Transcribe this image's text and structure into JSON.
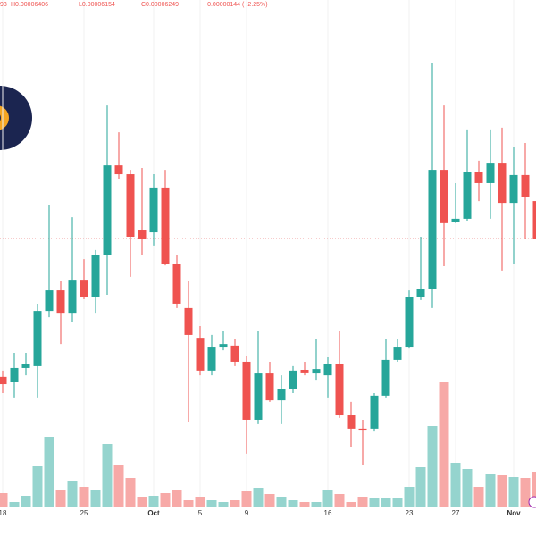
{
  "chart_data": {
    "type": "candlestick",
    "header": [
      "93",
      "H0.00006406",
      "L0.00006154",
      "C0.00006249",
      "−0.00000144 (−2.25%)"
    ],
    "categories": [
      "18",
      null,
      null,
      null,
      null,
      null,
      null,
      "25",
      null,
      null,
      null,
      null,
      null,
      "Oct",
      null,
      null,
      null,
      "5",
      null,
      null,
      null,
      "9",
      null,
      null,
      null,
      null,
      null,
      null,
      "16",
      null,
      null,
      null,
      null,
      null,
      null,
      "23",
      null,
      null,
      null,
      "27",
      null,
      null,
      null,
      null,
      "Nov",
      null,
      null
    ],
    "open": [
      5.718e-05,
      5.697e-05,
      5.752e-05,
      5.759e-05,
      5.971e-05,
      6.05e-05,
      5.964e-05,
      6.091e-05,
      6.023e-05,
      6.187e-05,
      6.53e-05,
      6.496e-05,
      6.28e-05,
      6.273e-05,
      6.445e-05,
      6.153e-05,
      5.982e-05,
      5.868e-05,
      5.742e-05,
      5.834e-05,
      5.838e-05,
      5.776e-05,
      5.553e-05,
      5.731e-05,
      5.628e-05,
      5.67e-05,
      5.745e-05,
      5.731e-05,
      5.724e-05,
      5.769e-05,
      5.57e-05,
      5.519e-05,
      5.519e-05,
      5.646e-05,
      5.783e-05,
      5.834e-05,
      6.023e-05,
      6.057e-05,
      6.513e-05,
      6.314e-05,
      6.325e-05,
      6.506e-05,
      6.462e-05,
      6.537e-05,
      6.386e-05,
      6.493e-05,
      6.393e-05
    ],
    "high": [
      5.742e-05,
      5.81e-05,
      5.81e-05,
      5.999e-05,
      6.376e-05,
      6.085e-05,
      6.331e-05,
      6.17e-05,
      6.205e-05,
      6.76e-05,
      6.657e-05,
      6.513e-05,
      6.52e-05,
      6.496e-05,
      6.513e-05,
      6.187e-05,
      6.085e-05,
      5.913e-05,
      5.879e-05,
      5.896e-05,
      5.862e-05,
      5.8e-05,
      5.896e-05,
      5.776e-05,
      5.724e-05,
      5.759e-05,
      5.776e-05,
      5.862e-05,
      5.793e-05,
      5.896e-05,
      5.622e-05,
      5.553e-05,
      5.656e-05,
      5.862e-05,
      5.862e-05,
      6.05e-05,
      6.256e-05,
      6.925e-05,
      6.76e-05,
      6.462e-05,
      6.668e-05,
      6.548e-05,
      6.668e-05,
      6.675e-05,
      6.599e-05,
      6.616e-05,
      6.406e-05
    ],
    "low": [
      5.656e-05,
      5.639e-05,
      5.724e-05,
      5.639e-05,
      5.947e-05,
      5.844e-05,
      5.93e-05,
      6.016e-05,
      5.964e-05,
      6.033e-05,
      6.479e-05,
      6.102e-05,
      6.187e-05,
      6.222e-05,
      6.146e-05,
      5.982e-05,
      5.546e-05,
      5.724e-05,
      5.724e-05,
      5.82e-05,
      5.759e-05,
      5.423e-05,
      5.536e-05,
      5.622e-05,
      5.536e-05,
      5.656e-05,
      5.724e-05,
      5.707e-05,
      5.639e-05,
      5.56e-05,
      5.45e-05,
      5.381e-05,
      5.508e-05,
      5.639e-05,
      5.776e-05,
      5.827e-05,
      6.013e-05,
      5.982e-05,
      6.143e-05,
      6.308e-05,
      6.318e-05,
      6.393e-05,
      6.325e-05,
      6.126e-05,
      6.153e-05,
      6.246e-05,
      6.154e-05
    ],
    "close": [
      5.69e-05,
      5.752e-05,
      5.766e-05,
      5.971e-05,
      6.05e-05,
      5.964e-05,
      6.091e-05,
      6.023e-05,
      6.187e-05,
      6.53e-05,
      6.496e-05,
      6.256e-05,
      6.246e-05,
      6.445e-05,
      6.153e-05,
      5.999e-05,
      5.879e-05,
      5.742e-05,
      5.834e-05,
      5.844e-05,
      5.776e-05,
      5.553e-05,
      5.731e-05,
      5.628e-05,
      5.67e-05,
      5.742e-05,
      5.735e-05,
      5.748e-05,
      5.769e-05,
      5.57e-05,
      5.519e-05,
      5.515e-05,
      5.646e-05,
      5.783e-05,
      5.834e-05,
      6.023e-05,
      6.057e-05,
      6.513e-05,
      6.308e-05,
      6.325e-05,
      6.506e-05,
      6.462e-05,
      6.537e-05,
      6.386e-05,
      6.493e-05,
      6.41e-05,
      6.249e-05
    ],
    "volume": [
      16,
      6,
      13,
      46,
      79,
      20,
      30,
      23,
      20,
      71,
      48,
      33,
      12,
      13,
      16,
      20,
      8,
      12,
      8,
      6,
      8,
      18,
      22,
      15,
      12,
      8,
      6,
      6,
      19,
      15,
      6,
      12,
      11,
      10,
      10,
      23,
      45,
      91,
      140,
      50,
      43,
      23,
      37,
      36,
      34,
      33,
      40
    ],
    "price_line": 6.249e-05,
    "ylim": [
      5.107e-05,
      7.165e-05
    ],
    "up_color": "#26a69a",
    "down_color": "#ef5350",
    "up_volume_color": "#95d4ce",
    "down_volume_color": "#f7a9a7",
    "grid": true
  }
}
